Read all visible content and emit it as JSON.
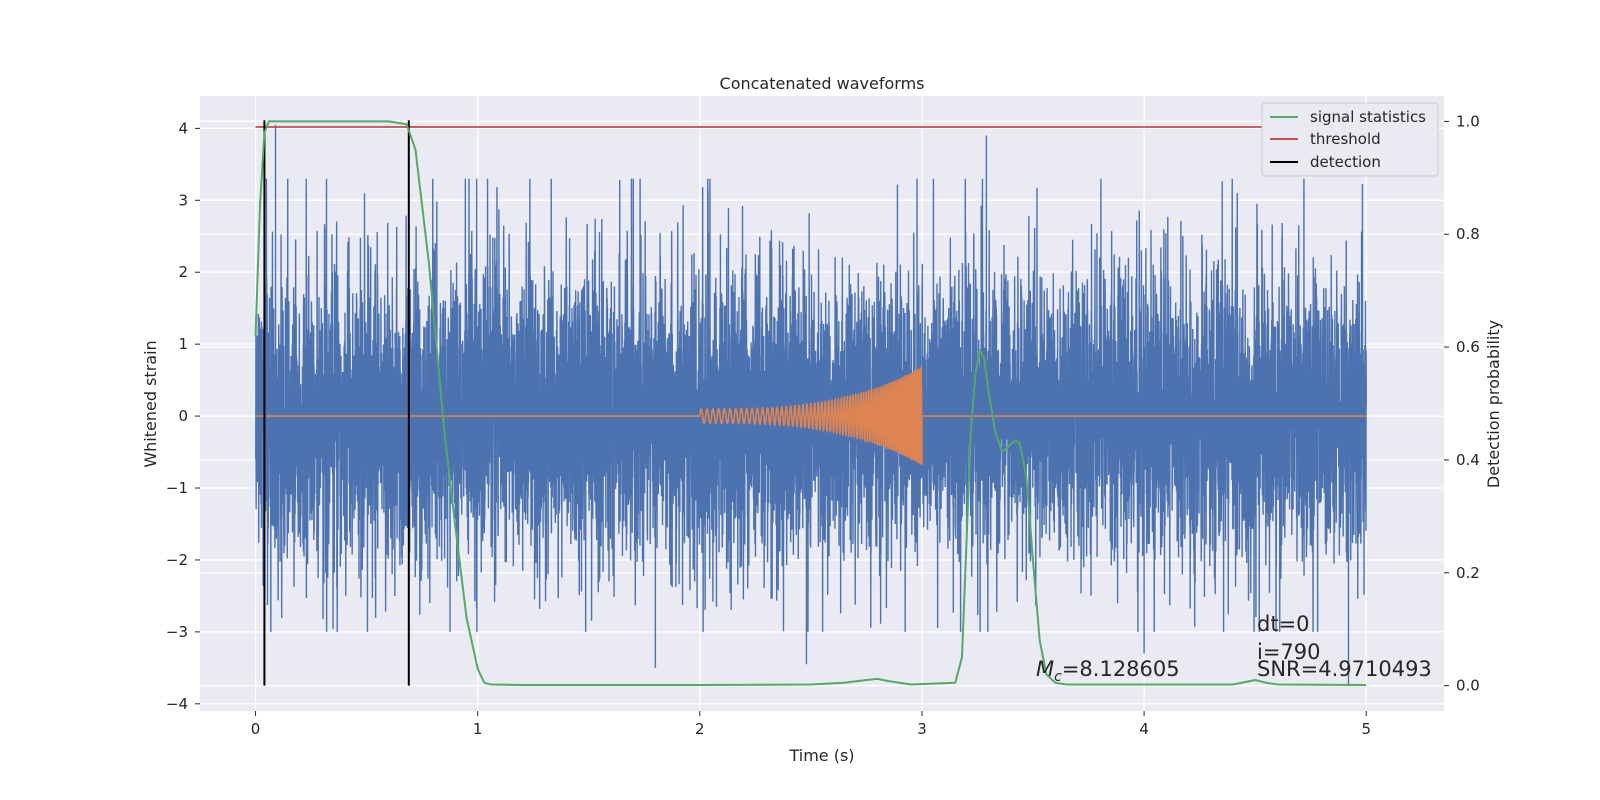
{
  "chart_data": {
    "type": "line",
    "title": "Concatenated waveforms",
    "xlabel": "Time (s)",
    "ylabel": "Whitened strain",
    "y2label": "Detection probability",
    "xlim": [
      -0.25,
      5.35
    ],
    "ylim": [
      -4.1,
      4.45
    ],
    "y2lim": [
      -0.045,
      1.045
    ],
    "x_ticks": [
      0,
      1,
      2,
      3,
      4,
      5
    ],
    "y_ticks": [
      -4,
      -3,
      -2,
      -1,
      0,
      1,
      2,
      3,
      4
    ],
    "y2_ticks": [
      0.0,
      0.2,
      0.4,
      0.6,
      0.8,
      1.0
    ],
    "y2_tick_labels": [
      "0.0",
      "0.2",
      "0.4",
      "0.6",
      "0.8",
      "1.0"
    ],
    "grid": true,
    "legend_position": "top-right",
    "colors": {
      "strain": "#4c72b0",
      "template": "#dd8452",
      "signal_statistics": "#55a868",
      "threshold": "#c44e52",
      "detection": "#000000",
      "plot_background": "#eaeaf2",
      "grid": "#ffffff"
    },
    "series": [
      {
        "name": "",
        "axis": "left",
        "description_kind": "noise",
        "x_range": [
          0,
          5
        ],
        "approx_range": [
          -3.8,
          4.05
        ],
        "notable_spikes": [
          {
            "x": 0.09,
            "y": 4.05
          },
          {
            "x": 3.29,
            "y": 3.9
          },
          {
            "x": 4.92,
            "y": -3.75
          },
          {
            "x": 1.8,
            "y": -3.5
          },
          {
            "x": 2.48,
            "y": -3.45
          },
          {
            "x": 4.0,
            "y": -3.3
          }
        ]
      },
      {
        "name": "",
        "axis": "left",
        "description_kind": "chirp",
        "x_range": [
          2.0,
          3.0
        ],
        "start_amplitude": 0.1,
        "peak_amplitude": 0.68
      },
      {
        "name": "signal statistics",
        "axis": "right",
        "x": [
          0,
          0.02,
          0.04,
          0.06,
          0.1,
          0.3,
          0.6,
          0.68,
          0.72,
          0.78,
          0.85,
          0.9,
          0.95,
          1.0,
          1.03,
          1.06,
          1.2,
          2.0,
          2.5,
          2.65,
          2.75,
          2.8,
          2.85,
          2.95,
          3.15,
          3.18,
          3.2,
          3.22,
          3.24,
          3.26,
          3.28,
          3.3,
          3.33,
          3.36,
          3.38,
          3.42,
          3.44,
          3.47,
          3.5,
          3.53,
          3.56,
          3.6,
          3.65,
          4.4,
          4.45,
          4.5,
          4.55,
          4.6,
          5.0
        ],
        "y": [
          0.62,
          0.85,
          0.98,
          1.0,
          1.0,
          1.0,
          1.0,
          0.995,
          0.95,
          0.75,
          0.45,
          0.28,
          0.12,
          0.03,
          0.005,
          0.002,
          0.001,
          0.001,
          0.002,
          0.005,
          0.01,
          0.012,
          0.008,
          0.002,
          0.005,
          0.05,
          0.25,
          0.45,
          0.55,
          0.595,
          0.58,
          0.52,
          0.45,
          0.415,
          0.42,
          0.435,
          0.43,
          0.37,
          0.22,
          0.08,
          0.02,
          0.005,
          0.002,
          0.002,
          0.006,
          0.01,
          0.005,
          0.002,
          0.001
        ]
      },
      {
        "name": "threshold",
        "axis": "right",
        "x": [
          0,
          5
        ],
        "y": [
          0.99,
          0.99
        ]
      },
      {
        "name": "detection",
        "axis": "right",
        "vlines": [
          0.04,
          0.69
        ],
        "ymin": 0.0,
        "ymax": 1.0
      }
    ],
    "annotations": {
      "mc": "=8.128605",
      "dt": "dt=0",
      "i": "i=790",
      "snr": "SNR=4.9710493"
    }
  }
}
